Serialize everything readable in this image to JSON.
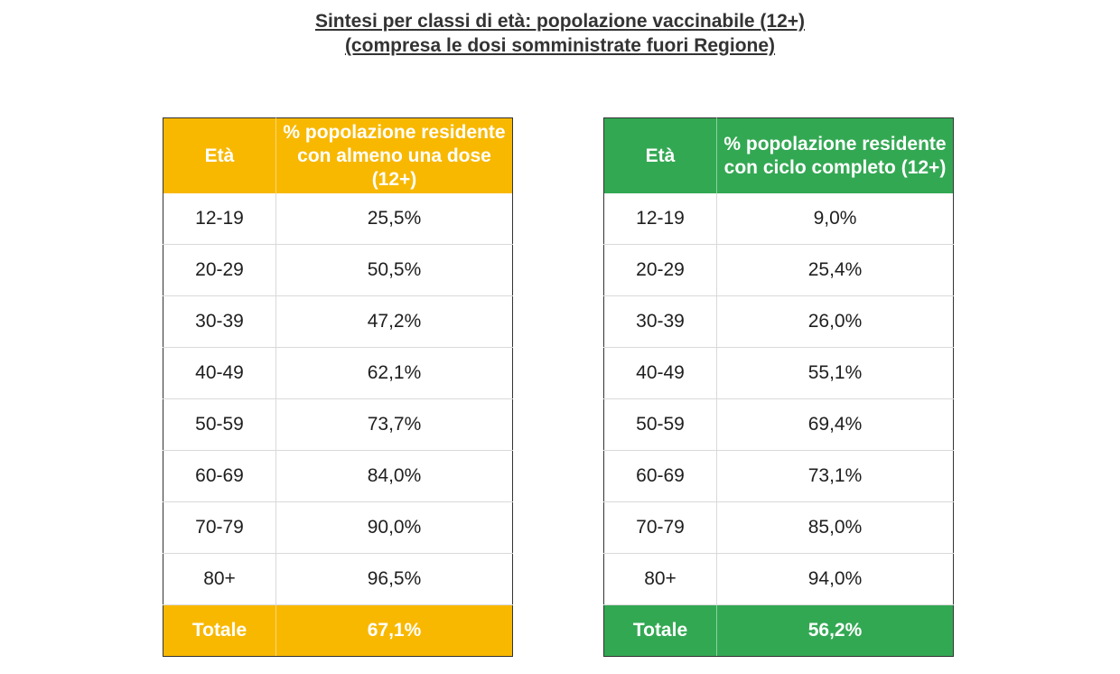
{
  "title": {
    "line1": "Sintesi per classi di età: popolazione vaccinabile (12+)",
    "line2": "(compresa le dosi somministrate fuori Regione)"
  },
  "colors": {
    "left_header": "#F8B800",
    "right_header": "#33A853"
  },
  "tables": [
    {
      "header": {
        "age": "Età",
        "value": "% popolazione residente con almeno una dose (12+)"
      },
      "rows": [
        {
          "age": "12-19",
          "value": "25,5%"
        },
        {
          "age": "20-29",
          "value": "50,5%"
        },
        {
          "age": "30-39",
          "value": "47,2%"
        },
        {
          "age": "40-49",
          "value": "62,1%"
        },
        {
          "age": "50-59",
          "value": "73,7%"
        },
        {
          "age": "60-69",
          "value": "84,0%"
        },
        {
          "age": "70-79",
          "value": "90,0%"
        },
        {
          "age": "80+",
          "value": "96,5%"
        }
      ],
      "total": {
        "label": "Totale",
        "value": "67,1%"
      }
    },
    {
      "header": {
        "age": "Età",
        "value": "% popolazione residente con ciclo completo (12+)"
      },
      "rows": [
        {
          "age": "12-19",
          "value": "9,0%"
        },
        {
          "age": "20-29",
          "value": "25,4%"
        },
        {
          "age": "30-39",
          "value": "26,0%"
        },
        {
          "age": "40-49",
          "value": "55,1%"
        },
        {
          "age": "50-59",
          "value": "69,4%"
        },
        {
          "age": "60-69",
          "value": "73,1%"
        },
        {
          "age": "70-79",
          "value": "85,0%"
        },
        {
          "age": "80+",
          "value": "94,0%"
        }
      ],
      "total": {
        "label": "Totale",
        "value": "56,2%"
      }
    }
  ]
}
